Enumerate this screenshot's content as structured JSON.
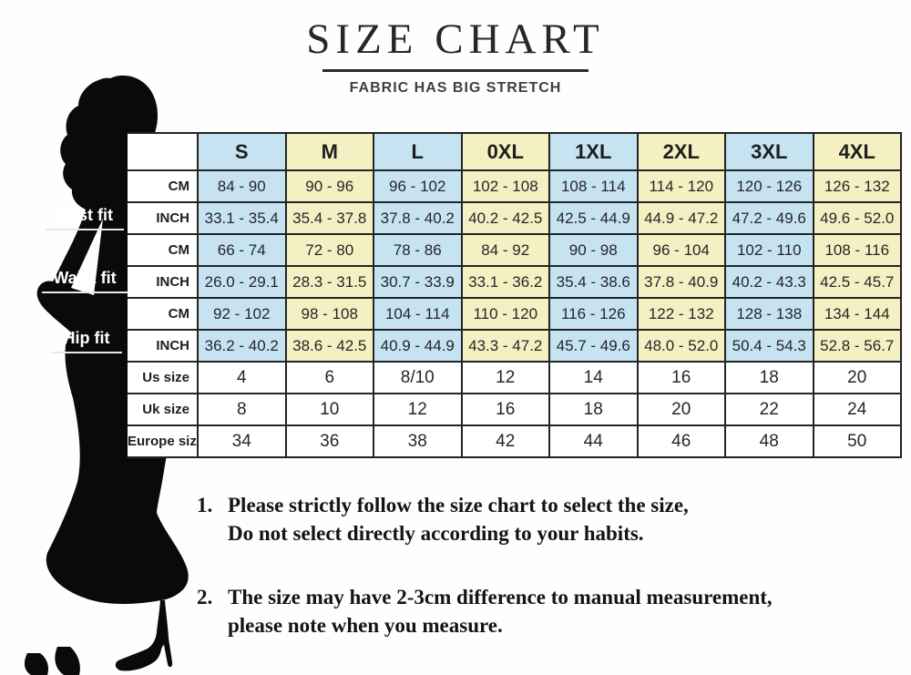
{
  "title": "SIZE CHART",
  "subtitle": "FABRIC HAS BIG STRETCH",
  "figure": {
    "bust_label": "Bust fit",
    "waist_label": "Waist fit",
    "hip_label": "Hip fit"
  },
  "colors": {
    "column_blue": "#c6e3f2",
    "column_yellow": "#f4f0c3",
    "table_border": "#242424",
    "silhouette": "#0a0a0a"
  },
  "chart_data": {
    "type": "table",
    "title": "SIZE CHART",
    "subtitle": "FABRIC HAS BIG STRETCH",
    "columns": [
      "S",
      "M",
      "L",
      "0XL",
      "1XL",
      "2XL",
      "3XL",
      "4XL"
    ],
    "column_fill_pattern": [
      "blue",
      "yellow",
      "blue",
      "yellow",
      "blue",
      "yellow",
      "blue",
      "yellow"
    ],
    "rows": [
      {
        "group": "Bust fit",
        "label": "CM",
        "colored": true,
        "values": [
          "84 - 90",
          "90 - 96",
          "96 - 102",
          "102 - 108",
          "108 - 114",
          "114 - 120",
          "120 - 126",
          "126 - 132"
        ]
      },
      {
        "group": "Bust fit",
        "label": "INCH",
        "colored": true,
        "values": [
          "33.1 - 35.4",
          "35.4 - 37.8",
          "37.8 - 40.2",
          "40.2 - 42.5",
          "42.5 - 44.9",
          "44.9 - 47.2",
          "47.2 - 49.6",
          "49.6 - 52.0"
        ]
      },
      {
        "group": "Waist fit",
        "label": "CM",
        "colored": true,
        "values": [
          "66 - 74",
          "72 - 80",
          "78 - 86",
          "84 - 92",
          "90 - 98",
          "96 - 104",
          "102 - 110",
          "108 - 116"
        ]
      },
      {
        "group": "Waist fit",
        "label": "INCH",
        "colored": true,
        "values": [
          "26.0 - 29.1",
          "28.3 - 31.5",
          "30.7 - 33.9",
          "33.1 - 36.2",
          "35.4 - 38.6",
          "37.8 - 40.9",
          "40.2 - 43.3",
          "42.5 - 45.7"
        ]
      },
      {
        "group": "Hip fit",
        "label": "CM",
        "colored": true,
        "values": [
          "92 - 102",
          "98 - 108",
          "104 - 114",
          "110 - 120",
          "116 - 126",
          "122 - 132",
          "128 - 138",
          "134 - 144"
        ]
      },
      {
        "group": "Hip fit",
        "label": "INCH",
        "colored": true,
        "values": [
          "36.2 - 40.2",
          "38.6 - 42.5",
          "40.9 - 44.9",
          "43.3 - 47.2",
          "45.7 - 49.6",
          "48.0 - 52.0",
          "50.4 - 54.3",
          "52.8 - 56.7"
        ]
      },
      {
        "group": "",
        "label": "Us size",
        "colored": false,
        "values": [
          "4",
          "6",
          "8/10",
          "12",
          "14",
          "16",
          "18",
          "20"
        ]
      },
      {
        "group": "",
        "label": "Uk size",
        "colored": false,
        "values": [
          "8",
          "10",
          "12",
          "16",
          "18",
          "20",
          "22",
          "24"
        ]
      },
      {
        "group": "",
        "label": "Europe size",
        "colored": false,
        "values": [
          "34",
          "36",
          "38",
          "42",
          "44",
          "46",
          "48",
          "50"
        ]
      }
    ]
  },
  "notes": [
    {
      "num": "1.",
      "line1": "Please strictly follow the size chart to select the size,",
      "line2": "Do not select directly according to your habits."
    },
    {
      "num": "2.",
      "line1": "The size may have 2-3cm difference  to manual measurement,",
      "line2": "please note when you measure."
    }
  ]
}
